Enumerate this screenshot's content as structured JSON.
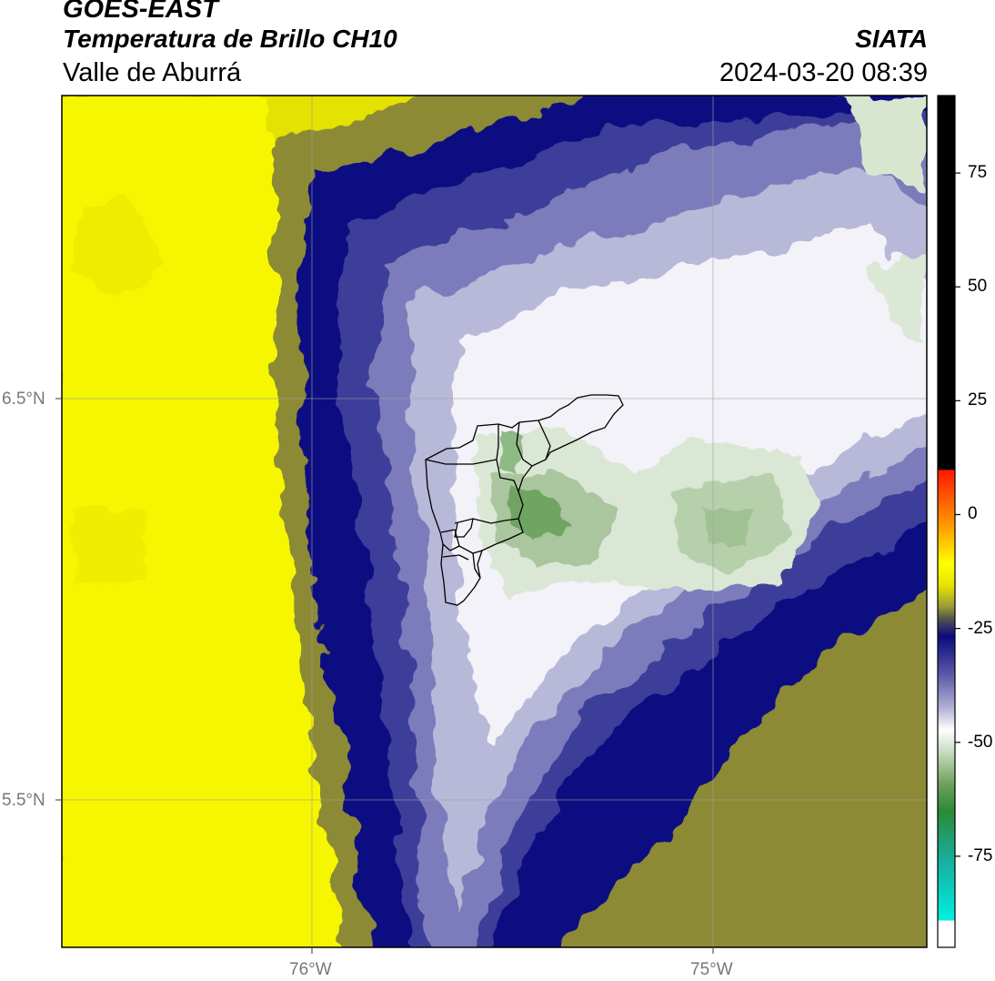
{
  "header": {
    "satellite": "GOES-EAST",
    "product": "Temperatura de Brillo CH10",
    "region": "Valle de Aburrá",
    "agency": "SIATA",
    "datetime": "2024-03-20 08:39"
  },
  "map": {
    "lat_labels": [
      "6.5°N",
      "5.5°N"
    ],
    "lon_labels": [
      "76°W",
      "75°W"
    ],
    "lat_values": [
      6.5,
      5.5
    ],
    "lon_values": [
      -76.0,
      -75.0
    ],
    "extent": {
      "lon_min": -76.62,
      "lon_max": -74.47,
      "lat_min": 5.13,
      "lat_max": 7.25
    }
  },
  "colorbar": {
    "ticks": [
      "75",
      "50",
      "25",
      "0",
      "-25",
      "-50",
      "-75"
    ],
    "tick_values": [
      75,
      50,
      25,
      0,
      -25,
      -50,
      -75
    ],
    "range": [
      -95,
      92
    ],
    "colors": {
      "black": "#000000",
      "red": "#ff2000",
      "orange": "#ff9000",
      "yellow": "#ffff00",
      "olive": "#8a8a30",
      "navy": "#0a0a80",
      "lavender": "#b8b8d8",
      "white": "#ffffff",
      "green": "#3a8a30",
      "cyan": "#00e8d8"
    }
  }
}
